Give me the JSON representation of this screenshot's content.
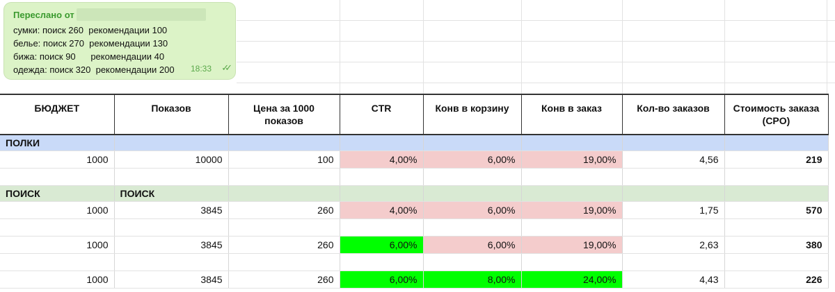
{
  "message": {
    "forwarded_label": "Переслано от",
    "lines": [
      "сумки: поиск 260  рекомендации 100",
      "белье: поиск 270  рекомендации 130",
      "бижа: поиск 90      рекомендации 40",
      "одежда: поиск 320  рекомендации 200"
    ],
    "time": "18:33",
    "read_ticks": "✓✓"
  },
  "table": {
    "headers": [
      "БЮДЖЕТ",
      "Показов",
      "Цена за 1000 показов",
      "CTR",
      "Конв в корзину",
      "Конв в заказ",
      "Кол-во заказов",
      "Стоимость заказа (CPO)"
    ],
    "section_polki": {
      "label": "ПОЛКИ"
    },
    "row_polki": [
      "1000",
      "10000",
      "100",
      "4,00%",
      "6,00%",
      "19,00%",
      "4,56",
      "219"
    ],
    "section_poisk": {
      "label_a": "ПОИСК",
      "label_b": "ПОИСК"
    },
    "rows_poisk": [
      [
        "1000",
        "3845",
        "260",
        "4,00%",
        "6,00%",
        "19,00%",
        "1,75",
        "570"
      ],
      [
        "1000",
        "3845",
        "260",
        "6,00%",
        "6,00%",
        "19,00%",
        "2,63",
        "380"
      ],
      [
        "1000",
        "3845",
        "260",
        "6,00%",
        "8,00%",
        "24,00%",
        "4,43",
        "226"
      ]
    ]
  },
  "colors": {
    "pink_cell": "#f4cccc",
    "green_cell": "#00ff00",
    "section_blue": "#c9daf8",
    "section_green": "#d9ead3",
    "bubble": "#dcf3c7"
  }
}
